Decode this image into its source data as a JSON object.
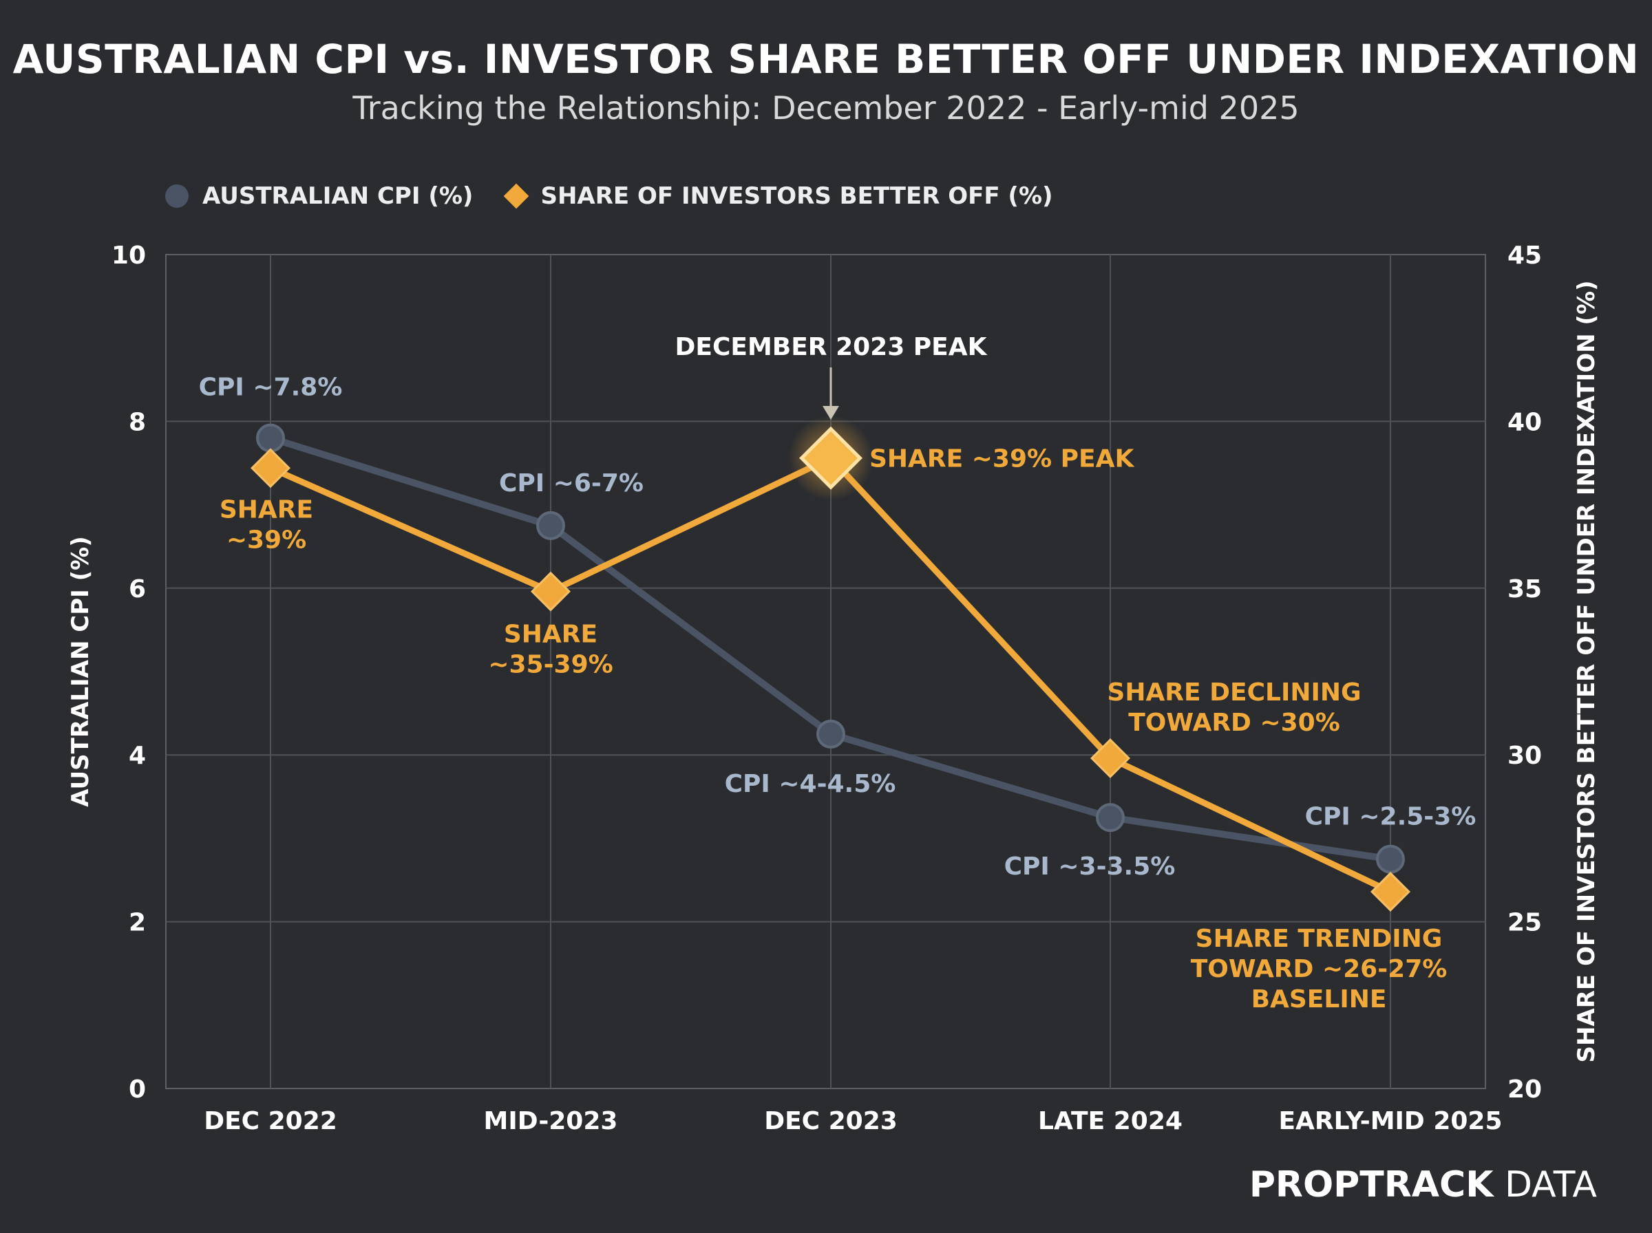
{
  "title": "AUSTRALIAN CPI vs. INVESTOR SHARE BETTER OFF UNDER INDEXATION",
  "subtitle": "Tracking the Relationship: December 2022 - Early-mid 2025",
  "legend": {
    "cpi_label": "AUSTRALIAN CPI (%)",
    "share_label": "SHARE OF INVESTORS BETTER OFF (%)"
  },
  "brand": {
    "bold": "PROPTRACK",
    "light": "DATA"
  },
  "colors": {
    "background": "#2a2c30",
    "cpi": "#4a5464",
    "cpi_label": "#a9b8cc",
    "share": "#f0a93a",
    "grid": "#4e5156"
  },
  "chart_data": {
    "type": "line",
    "categories": [
      "DEC 2022",
      "MID-2023",
      "DEC 2023",
      "LATE 2024",
      "EARLY-MID 2025"
    ],
    "ylabel_left": "AUSTRALIAN CPI (%)",
    "ylabel_right": "SHARE OF INVESTORS BETTER OFF UNDER INDEXATION (%)",
    "ylim_left": [
      0,
      10
    ],
    "ylim_right": [
      20,
      45
    ],
    "yticks_left": [
      0,
      2,
      4,
      6,
      8,
      10
    ],
    "yticks_right": [
      20,
      25,
      30,
      35,
      40,
      45
    ],
    "grid": true,
    "legend_position": "top-left",
    "series": [
      {
        "name": "AUSTRALIAN CPI (%)",
        "axis": "left",
        "values": [
          7.8,
          6.75,
          4.25,
          3.25,
          2.75
        ],
        "labels": [
          "CPI ~7.8%",
          "CPI ~6-7%",
          "CPI ~4-4.5%",
          "CPI ~3-3.5%",
          "CPI ~2.5-3%"
        ]
      },
      {
        "name": "SHARE OF INVESTORS BETTER OFF (%)",
        "axis": "right",
        "values": [
          38.6,
          34.9,
          38.9,
          29.9,
          25.9
        ],
        "labels": [
          [
            "SHARE",
            "~39%"
          ],
          [
            "SHARE",
            "~35-39%"
          ],
          [
            "SHARE ~39% PEAK"
          ],
          [
            "SHARE DECLINING",
            "TOWARD ~30%"
          ],
          [
            "SHARE TRENDING",
            "TOWARD ~26-27%",
            "BASELINE"
          ]
        ]
      }
    ],
    "annotations": [
      {
        "text": "DECEMBER 2023 PEAK",
        "category": "DEC 2023"
      }
    ]
  }
}
